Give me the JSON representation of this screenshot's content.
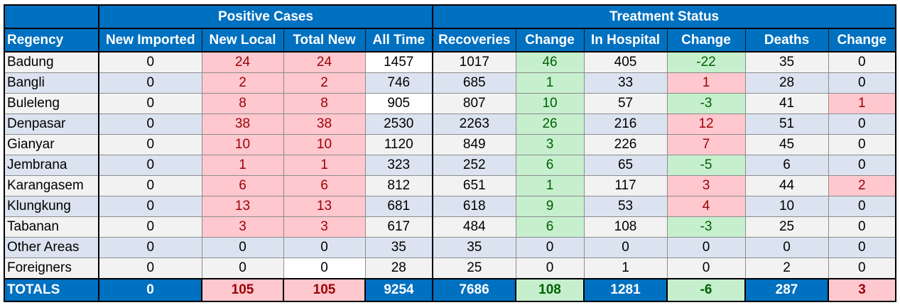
{
  "groups": {
    "positive_cases": "Positive Cases",
    "treatment_status": "Treatment Status"
  },
  "columns": [
    "Regency",
    "New Imported",
    "New Local",
    "Total New",
    "All Time",
    "Recoveries",
    "Change",
    "In Hospital",
    "Change",
    "Deaths",
    "Change"
  ],
  "rows": [
    [
      "Badung",
      "0",
      "24",
      "24",
      "1457",
      "1017",
      "46",
      "405",
      "-22",
      "35",
      "0"
    ],
    [
      "Bangli",
      "0",
      "2",
      "2",
      "746",
      "685",
      "1",
      "33",
      "1",
      "28",
      "0"
    ],
    [
      "Buleleng",
      "0",
      "8",
      "8",
      "905",
      "807",
      "10",
      "57",
      "-3",
      "41",
      "1"
    ],
    [
      "Denpasar",
      "0",
      "38",
      "38",
      "2530",
      "2263",
      "26",
      "216",
      "12",
      "51",
      "0"
    ],
    [
      "Gianyar",
      "0",
      "10",
      "10",
      "1120",
      "849",
      "3",
      "226",
      "7",
      "45",
      "0"
    ],
    [
      "Jembrana",
      "0",
      "1",
      "1",
      "323",
      "252",
      "6",
      "65",
      "-5",
      "6",
      "0"
    ],
    [
      "Karangasem",
      "0",
      "6",
      "6",
      "812",
      "651",
      "1",
      "117",
      "3",
      "44",
      "2"
    ],
    [
      "Klungkung",
      "0",
      "13",
      "13",
      "681",
      "618",
      "9",
      "53",
      "4",
      "10",
      "0"
    ],
    [
      "Tabanan",
      "0",
      "3",
      "3",
      "617",
      "484",
      "6",
      "108",
      "-3",
      "25",
      "0"
    ],
    [
      "Other Areas",
      "0",
      "0",
      "0",
      "35",
      "35",
      "0",
      "0",
      "0",
      "0",
      "0"
    ],
    [
      "Foreigners",
      "0",
      "0",
      "0",
      "28",
      "25",
      "0",
      "1",
      "0",
      "2",
      "0"
    ]
  ],
  "totals": [
    "TOTALS",
    "0",
    "105",
    "105",
    "9254",
    "7686",
    "108",
    "1281",
    "-6",
    "287",
    "3"
  ],
  "colors": {
    "header_blue": "#0070c0",
    "row_odd": "#f2f2f2",
    "row_even": "#dce3f0",
    "increase_fill": "#ffc7ce",
    "increase_text": "#9c0006",
    "decrease_fill": "#c6efce",
    "decrease_text": "#006100"
  }
}
